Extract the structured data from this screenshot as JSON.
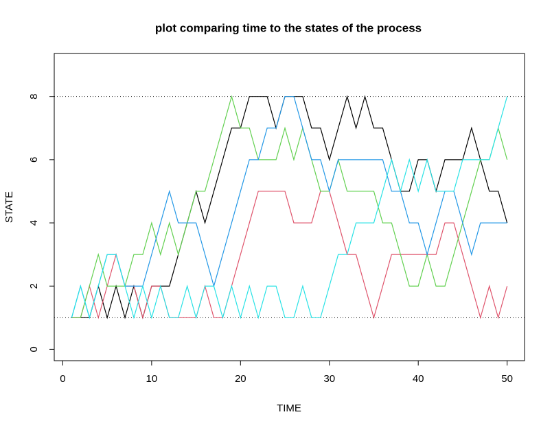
{
  "chart_data": {
    "type": "line",
    "title": "plot comparing time to the states of the process",
    "x_label": "TIME",
    "y_label": "STATE",
    "x": [
      1,
      2,
      3,
      4,
      5,
      6,
      7,
      8,
      9,
      10,
      11,
      12,
      13,
      14,
      15,
      16,
      17,
      18,
      19,
      20,
      21,
      22,
      23,
      24,
      25,
      26,
      27,
      28,
      29,
      30,
      31,
      32,
      33,
      34,
      35,
      36,
      37,
      38,
      39,
      40,
      41,
      42,
      43,
      44,
      45,
      46,
      47,
      48,
      49,
      50
    ],
    "series": [
      {
        "color": "#000000",
        "values": [
          1,
          1,
          1,
          2,
          1,
          2,
          1,
          2,
          1,
          2,
          2,
          2,
          3,
          4,
          5,
          4,
          5,
          6,
          7,
          7,
          8,
          8,
          8,
          7,
          8,
          8,
          8,
          7,
          7,
          6,
          7,
          8,
          7,
          8,
          7,
          7,
          6,
          5,
          5,
          6,
          6,
          5,
          6,
          6,
          6,
          7,
          6,
          5,
          5,
          4
        ]
      },
      {
        "color": "#DF536B",
        "values": [
          1,
          1,
          2,
          1,
          2,
          3,
          2,
          2,
          1,
          2,
          2,
          1,
          1,
          1,
          1,
          2,
          1,
          1,
          2,
          3,
          4,
          5,
          5,
          5,
          5,
          4,
          4,
          4,
          5,
          5,
          4,
          3,
          3,
          2,
          1,
          2,
          3,
          3,
          3,
          3,
          3,
          3,
          4,
          4,
          3,
          2,
          1,
          2,
          1,
          2
        ]
      },
      {
        "color": "#61D04F",
        "values": [
          1,
          1,
          2,
          3,
          2,
          2,
          2,
          3,
          3,
          4,
          3,
          4,
          3,
          4,
          5,
          5,
          6,
          7,
          8,
          7,
          7,
          6,
          6,
          6,
          7,
          6,
          7,
          6,
          5,
          5,
          6,
          5,
          5,
          5,
          5,
          4,
          4,
          3,
          2,
          2,
          3,
          2,
          2,
          3,
          4,
          5,
          6,
          6,
          7,
          6
        ]
      },
      {
        "color": "#2297E6",
        "values": [
          1,
          2,
          1,
          2,
          3,
          3,
          2,
          2,
          2,
          3,
          4,
          5,
          4,
          4,
          4,
          3,
          2,
          3,
          4,
          5,
          6,
          6,
          7,
          7,
          8,
          8,
          7,
          6,
          6,
          5,
          6,
          6,
          6,
          6,
          6,
          6,
          5,
          5,
          4,
          4,
          3,
          4,
          5,
          5,
          4,
          3,
          4,
          4,
          4,
          4
        ]
      },
      {
        "color": "#28E2E5",
        "values": [
          1,
          2,
          1,
          2,
          3,
          3,
          2,
          1,
          2,
          1,
          2,
          1,
          1,
          2,
          1,
          2,
          2,
          1,
          2,
          1,
          2,
          1,
          2,
          2,
          1,
          1,
          2,
          1,
          1,
          2,
          3,
          3,
          4,
          4,
          4,
          5,
          6,
          5,
          6,
          5,
          6,
          5,
          5,
          5,
          6,
          6,
          6,
          6,
          7,
          8
        ]
      }
    ],
    "hlines": [
      1,
      8
    ],
    "xlim": [
      -0.96,
      51.96
    ],
    "ylim": [
      -0.36,
      9.36
    ],
    "xticks": [
      0,
      10,
      20,
      30,
      40,
      50
    ],
    "yticks": [
      0,
      2,
      4,
      6,
      8
    ]
  }
}
